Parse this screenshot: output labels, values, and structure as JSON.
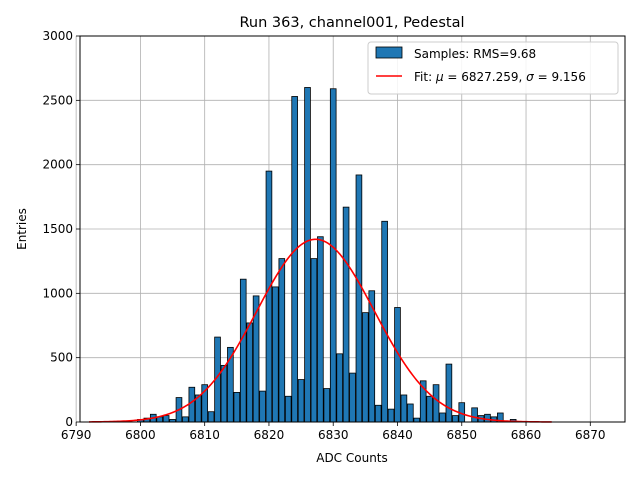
{
  "chart_data": {
    "type": "bar",
    "title": "Run 363, channel001, Pedestal",
    "xlabel": "ADC Counts",
    "ylabel": "Entries",
    "xlim": [
      6790.6,
      6875.4
    ],
    "ylim": [
      0,
      3000
    ],
    "xticks": [
      6790,
      6800,
      6810,
      6820,
      6830,
      6840,
      6850,
      6860,
      6870
    ],
    "yticks": [
      0,
      500,
      1000,
      1500,
      2000,
      2500,
      3000
    ],
    "grid": true,
    "legend_position": "top-right",
    "bar_width": 0.9,
    "colors": {
      "bar_fill": "#1f77b4",
      "bar_edge": "#000000",
      "fit_line": "#ff0000",
      "grid": "#b0b0b0"
    },
    "histogram": {
      "name": "Samples: RMS=9.68",
      "x": [
        6800,
        6801,
        6802,
        6803,
        6804,
        6805,
        6806,
        6807,
        6808,
        6809,
        6810,
        6811,
        6812,
        6813,
        6814,
        6815,
        6816,
        6817,
        6818,
        6819,
        6820,
        6821,
        6822,
        6823,
        6824,
        6825,
        6826,
        6827,
        6828,
        6829,
        6830,
        6831,
        6832,
        6833,
        6834,
        6835,
        6836,
        6837,
        6838,
        6839,
        6840,
        6841,
        6842,
        6843,
        6844,
        6845,
        6846,
        6847,
        6848,
        6849,
        6850,
        6851,
        6852,
        6853,
        6854,
        6855,
        6856,
        6857,
        6858
      ],
      "values": [
        20,
        30,
        60,
        40,
        50,
        20,
        190,
        40,
        270,
        210,
        290,
        80,
        660,
        440,
        580,
        230,
        1110,
        770,
        980,
        240,
        1950,
        1050,
        1270,
        200,
        2530,
        330,
        2600,
        1270,
        1440,
        260,
        2590,
        530,
        1670,
        380,
        1920,
        850,
        1020,
        130,
        1560,
        100,
        890,
        210,
        140,
        30,
        320,
        200,
        290,
        70,
        450,
        50,
        150,
        0,
        110,
        50,
        60,
        40,
        70,
        0,
        20
      ]
    },
    "fit": {
      "name_prefix": "Fit: ",
      "mu_symbol": "μ",
      "mu_value": "6827.259",
      "sigma_symbol": "σ",
      "sigma_value": "9.156",
      "mu": 6827.259,
      "sigma": 9.156,
      "amplitude": 1420,
      "x_range": [
        6792,
        6864
      ]
    }
  }
}
